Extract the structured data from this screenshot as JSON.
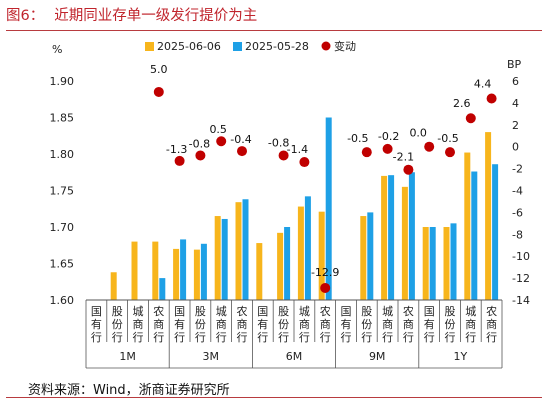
{
  "title": {
    "figure": "图6：",
    "text": "近期同业存单一级发行提价为主"
  },
  "source": "资料来源：Wind，浙商证券研究所",
  "colors": {
    "series1": "#f7b51c",
    "series2": "#1ea0e6",
    "change": "#c00000"
  },
  "chart_data": {
    "type": "bar",
    "left_axis_unit": "%",
    "right_axis_unit": "BP",
    "left_ylim": [
      1.6,
      1.9
    ],
    "left_ticks": [
      "1.60",
      "1.65",
      "1.70",
      "1.75",
      "1.80",
      "1.85",
      "1.90"
    ],
    "right_ylim": [
      -14,
      6
    ],
    "right_ticks": [
      "-14",
      "-12",
      "-10",
      "-8",
      "-6",
      "-4",
      "-2",
      "0",
      "2",
      "4",
      "6"
    ],
    "groups": [
      "1M",
      "3M",
      "6M",
      "9M",
      "1Y"
    ],
    "categories": [
      "国有行",
      "股份行",
      "城商行",
      "农商行",
      "国有行",
      "股份行",
      "城商行",
      "农商行",
      "国有行",
      "股份行",
      "城商行",
      "农商行",
      "国有行",
      "股份行",
      "城商行",
      "农商行",
      "国有行",
      "股份行",
      "城商行",
      "农商行"
    ],
    "series": [
      {
        "name": "2025-06-06",
        "axis": "left",
        "kind": "bar",
        "values": [
          1.6,
          1.638,
          1.68,
          1.68,
          1.67,
          1.669,
          1.715,
          1.734,
          1.678,
          1.692,
          1.728,
          1.721,
          1.6,
          1.715,
          1.77,
          1.755,
          1.7,
          1.7,
          1.802,
          1.83
        ]
      },
      {
        "name": "2025-05-28",
        "axis": "left",
        "kind": "bar",
        "values": [
          1.6,
          1.6,
          1.6,
          1.63,
          1.683,
          1.677,
          1.711,
          1.738,
          1.6,
          1.7,
          1.742,
          1.85,
          1.6,
          1.72,
          1.771,
          1.775,
          1.7,
          1.705,
          1.776,
          1.786
        ]
      },
      {
        "name": "变动",
        "axis": "right",
        "kind": "scatter",
        "values": [
          null,
          null,
          null,
          5.0,
          -1.3,
          -0.8,
          0.5,
          -0.4,
          null,
          -0.8,
          -1.4,
          -12.9,
          null,
          -0.5,
          -0.2,
          -2.1,
          0.0,
          -0.5,
          2.6,
          4.4
        ],
        "labels": [
          "",
          "",
          "",
          "5.0",
          "-1.3",
          "-0.8",
          "0.5",
          "-0.4",
          "",
          "-0.8",
          "-1.4",
          "-12.9",
          "",
          "-0.5",
          "-0.2",
          "-2.1",
          "0.0",
          "-0.5",
          "2.6",
          "4.4"
        ]
      }
    ],
    "legend_position": "top"
  }
}
